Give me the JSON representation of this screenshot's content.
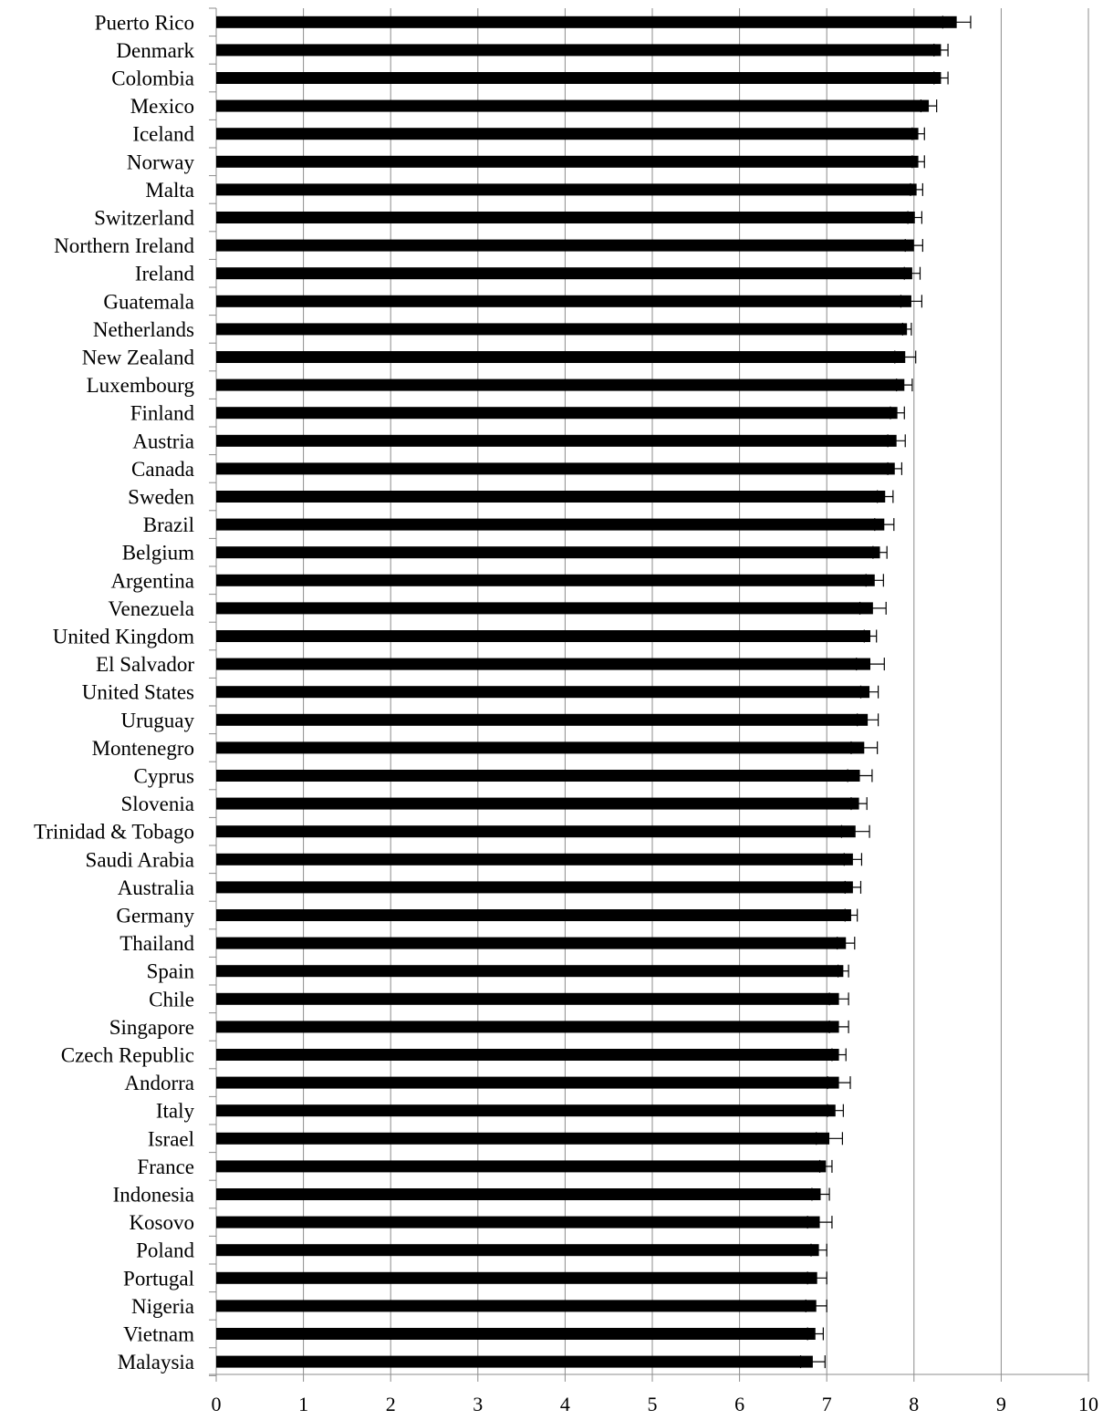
{
  "chart_data": {
    "type": "bar",
    "orientation": "horizontal",
    "title": "",
    "xlabel": "",
    "ylabel": "",
    "xlim": [
      0,
      10
    ],
    "x_ticks": [
      "0",
      "1",
      "2",
      "3",
      "4",
      "5",
      "6",
      "7",
      "8",
      "9",
      "10"
    ],
    "grid": "vertical",
    "legend": "none",
    "colors": {
      "bar": "#000000",
      "grid": "#8c8c8c",
      "axis": "#8c8c8c"
    },
    "categories": [
      "Puerto Rico",
      "Denmark",
      "Colombia",
      "Mexico",
      "Iceland",
      "Norway",
      "Malta",
      "Switzerland",
      "Northern Ireland",
      "Ireland",
      "Guatemala",
      "Netherlands",
      "New Zealand",
      "Luxembourg",
      "Finland",
      "Austria",
      "Canada",
      "Sweden",
      "Brazil",
      "Belgium",
      "Argentina",
      "Venezuela",
      "United Kingdom",
      "El Salvador",
      "United States",
      "Uruguay",
      "Montenegro",
      "Cyprus",
      "Slovenia",
      "Trinidad & Tobago",
      "Saudi Arabia",
      "Australia",
      "Germany",
      "Thailand",
      "Spain",
      "Chile",
      "Singapore",
      "Czech Republic",
      "Andorra",
      "Italy",
      "Israel",
      "France",
      "Indonesia",
      "Kosovo",
      "Poland",
      "Portugal",
      "Nigeria",
      "Vietnam",
      "Malaysia"
    ],
    "values": [
      8.49,
      8.31,
      8.31,
      8.17,
      8.05,
      8.05,
      8.03,
      8.01,
      8.0,
      7.98,
      7.97,
      7.92,
      7.9,
      7.89,
      7.81,
      7.8,
      7.78,
      7.67,
      7.66,
      7.61,
      7.55,
      7.53,
      7.5,
      7.5,
      7.49,
      7.47,
      7.43,
      7.38,
      7.37,
      7.33,
      7.3,
      7.3,
      7.28,
      7.22,
      7.19,
      7.14,
      7.14,
      7.14,
      7.14,
      7.1,
      7.03,
      6.99,
      6.93,
      6.92,
      6.91,
      6.89,
      6.88,
      6.87,
      6.84
    ],
    "error": [
      0.16,
      0.08,
      0.08,
      0.09,
      0.07,
      0.07,
      0.07,
      0.08,
      0.1,
      0.09,
      0.12,
      0.05,
      0.12,
      0.09,
      0.08,
      0.1,
      0.08,
      0.09,
      0.11,
      0.08,
      0.1,
      0.15,
      0.07,
      0.16,
      0.1,
      0.12,
      0.15,
      0.14,
      0.09,
      0.16,
      0.1,
      0.09,
      0.07,
      0.1,
      0.06,
      0.11,
      0.11,
      0.08,
      0.13,
      0.09,
      0.15,
      0.07,
      0.1,
      0.14,
      0.09,
      0.11,
      0.12,
      0.09,
      0.14
    ]
  }
}
